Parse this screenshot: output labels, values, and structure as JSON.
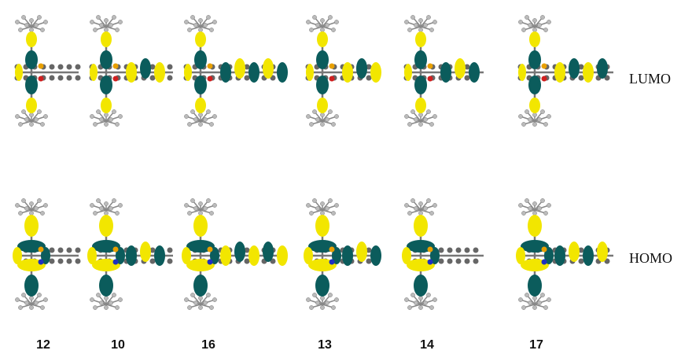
{
  "orbitals": [
    "LUMO",
    "HOMO"
  ],
  "compounds": [
    "12",
    "10",
    "16",
    "13",
    "14",
    "17"
  ]
}
